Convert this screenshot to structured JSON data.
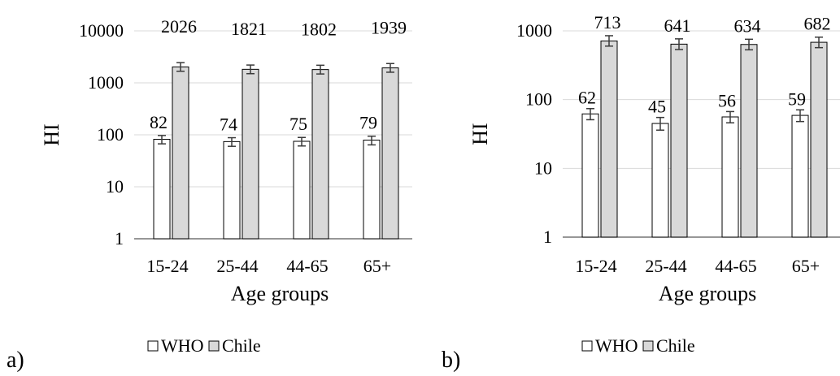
{
  "colors": {
    "who": "#ffffff",
    "chile": "#d9d9d9",
    "grid": "#d9d9d9",
    "axis": "#595959",
    "error": "#3a3a3a"
  },
  "chart_data": [
    {
      "type": "bar",
      "panel_label": "a)",
      "title": "",
      "xlabel": "Age groups",
      "ylabel": "HI",
      "yscale": "log",
      "ylim": [
        1,
        10000
      ],
      "yticks": [
        1,
        10,
        100,
        1000,
        10000
      ],
      "ytick_labels": [
        "1",
        "10",
        "100",
        "1000",
        "10000"
      ],
      "grid": true,
      "legend": "bottom",
      "categories": [
        "15-24",
        "25-44",
        "44-65",
        "65+"
      ],
      "series": [
        {
          "name": "WHO",
          "values": [
            82,
            74,
            75,
            79
          ],
          "data_labels": [
            "82",
            "74",
            "75",
            "79"
          ],
          "error_low": [
            67,
            60,
            61,
            64
          ],
          "error_high": [
            97,
            88,
            89,
            94
          ]
        },
        {
          "name": "Chile",
          "values": [
            2026,
            1821,
            1802,
            1939
          ],
          "data_labels": [
            "2026",
            "1821",
            "1802",
            "1939"
          ],
          "error_low": [
            1670,
            1500,
            1480,
            1600
          ],
          "error_high": [
            2450,
            2200,
            2180,
            2350
          ]
        }
      ]
    },
    {
      "type": "bar",
      "panel_label": "b)",
      "title": "",
      "xlabel": "Age groups",
      "ylabel": "HI",
      "yscale": "log",
      "ylim": [
        1,
        1000
      ],
      "yticks": [
        1,
        10,
        100,
        1000
      ],
      "ytick_labels": [
        "1",
        "10",
        "100",
        "1000"
      ],
      "grid": true,
      "legend": "bottom",
      "categories": [
        "15-24",
        "25-44",
        "44-65",
        "65+"
      ],
      "series": [
        {
          "name": "WHO",
          "values": [
            62,
            45,
            56,
            59
          ],
          "data_labels": [
            "62",
            "45",
            "56",
            "59"
          ],
          "error_low": [
            51,
            36,
            46,
            48
          ],
          "error_high": [
            74,
            55,
            67,
            71
          ]
        },
        {
          "name": "Chile",
          "values": [
            713,
            641,
            634,
            682
          ],
          "data_labels": [
            "713",
            "641",
            "634",
            "682"
          ],
          "error_low": [
            600,
            535,
            530,
            570
          ],
          "error_high": [
            850,
            765,
            755,
            810
          ]
        }
      ]
    }
  ]
}
